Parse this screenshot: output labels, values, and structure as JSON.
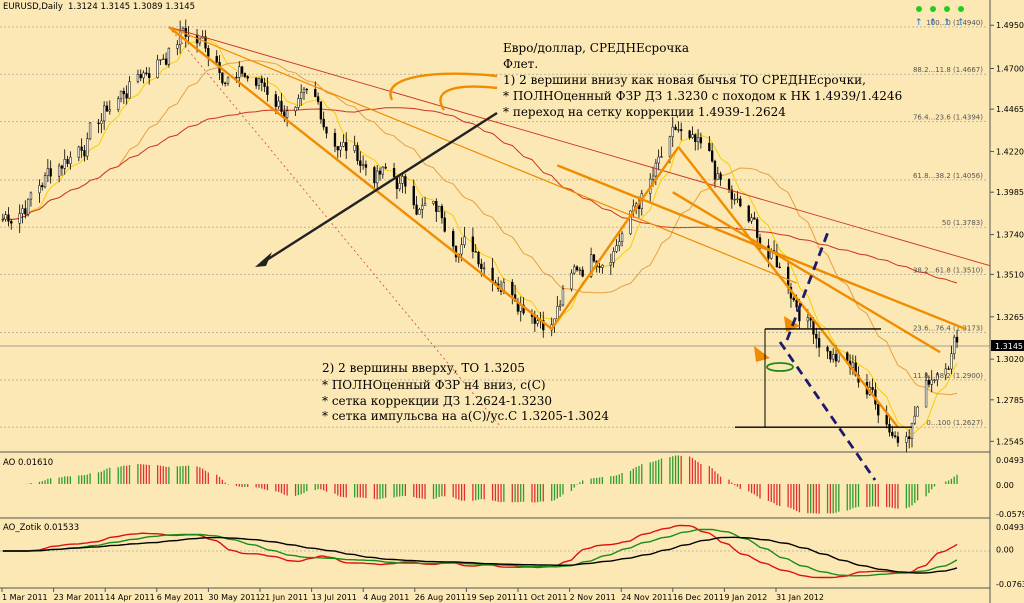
{
  "chart_data": {
    "type": "candlestick",
    "main": {
      "header": {
        "symbol": "EURUSD,Daily",
        "ohlc": "1.3124 1.3145 1.3089 1.3145"
      },
      "current_price_label": "1.3145",
      "ylim": [
        1.2495,
        1.5015
      ],
      "y_ticks": [
        "1.4950",
        "1.4700",
        "1.4465",
        "1.4220",
        "1.3985",
        "1.3740",
        "1.3510",
        "1.3265",
        "1.3020",
        "1.2785",
        "1.2545"
      ],
      "fib_levels": [
        {
          "label": "100...0 (1.4940)",
          "value": 1.494
        },
        {
          "label": "88.2...11.8 (1.4667)",
          "value": 1.4667
        },
        {
          "label": "76.4...23.6 (1.4394)",
          "value": 1.4394
        },
        {
          "label": "61.8...38.2 (1.4056)",
          "value": 1.4056
        },
        {
          "label": "50 (1.3783)",
          "value": 1.3783
        },
        {
          "label": "38.2...61.8 (1.3510)",
          "value": 1.351
        },
        {
          "label": "23.6...76.4 (1.3173)",
          "value": 1.3173
        },
        {
          "label": "11.8...88.2 (1.2900)",
          "value": 1.29
        },
        {
          "label": "0...100 (1.2627)",
          "value": 1.2627
        }
      ],
      "notes_top": [
        "Евро/доллар, СРЕДНЕсрочка",
        "Флет.",
        "1) 2 вершини внизу как новая бычья ТО СРЕДНЕсрочки,",
        "* ПОЛНОценный ФЗР ДЗ 1.3230 с походом к НК 1.4939/1.4246",
        "* переход на сетку коррекции 1.4939-1.2624"
      ],
      "notes_bottom": [
        "2) 2 вершины вверху, ТО 1.3205",
        "* ПОЛНОценный ФЗР н4 вниз, с(С)",
        "* сетка коррекции ДЗ 1.2624-1.3230",
        "* сетка импульсва на а(С)/ус.С 1.3205-1.3024"
      ],
      "key_points": [
        {
          "date": "2011-03-01",
          "price": 1.383
        },
        {
          "date": "2011-05-04",
          "price": 1.494
        },
        {
          "date": "2011-09-12",
          "price": 1.336
        },
        {
          "date": "2011-10-27",
          "price": 1.4246
        },
        {
          "date": "2012-01-13",
          "price": 1.2627
        },
        {
          "date": "2012-02-03",
          "price": 1.323
        }
      ]
    },
    "ao": {
      "header": "AO 0.01610",
      "ylim": [
        -0.0579,
        0.0493
      ],
      "y_ticks": [
        "0.04931",
        "0.00",
        "-0.0579"
      ]
    },
    "ao_zotik": {
      "header": "AO_Zotik 0.01533",
      "ylim": [
        -0.0763,
        0.0493
      ],
      "y_ticks": [
        "0.04931",
        "0.00",
        "-0.07630"
      ]
    },
    "x_ticks": [
      "1 Mar 2011",
      "23 Mar 2011",
      "14 Apr 2011",
      "6 May 2011",
      "30 May 2011",
      "21 Jun 2011",
      "13 Jul 2011",
      "4 Aug 2011",
      "26 Aug 2011",
      "19 Sep 2011",
      "11 Oct 2011",
      "2 Nov 2011",
      "24 Nov 2011",
      "16 Dec 2011",
      "9 Jan 2012",
      "31 Jan 2012"
    ],
    "colors": {
      "background": "#fce8b4",
      "candle": "#000000",
      "ma_fast": "#f5d000",
      "ma_mid": "#e8a040",
      "ma_slow": "#cc3322",
      "annotation": "#f08c00",
      "projection": "#1a1a6e",
      "ao_up": "#2e9d2e",
      "ao_down": "#e03030",
      "zotik_green": "#1a8c1a",
      "zotik_red": "#dd1111"
    }
  }
}
